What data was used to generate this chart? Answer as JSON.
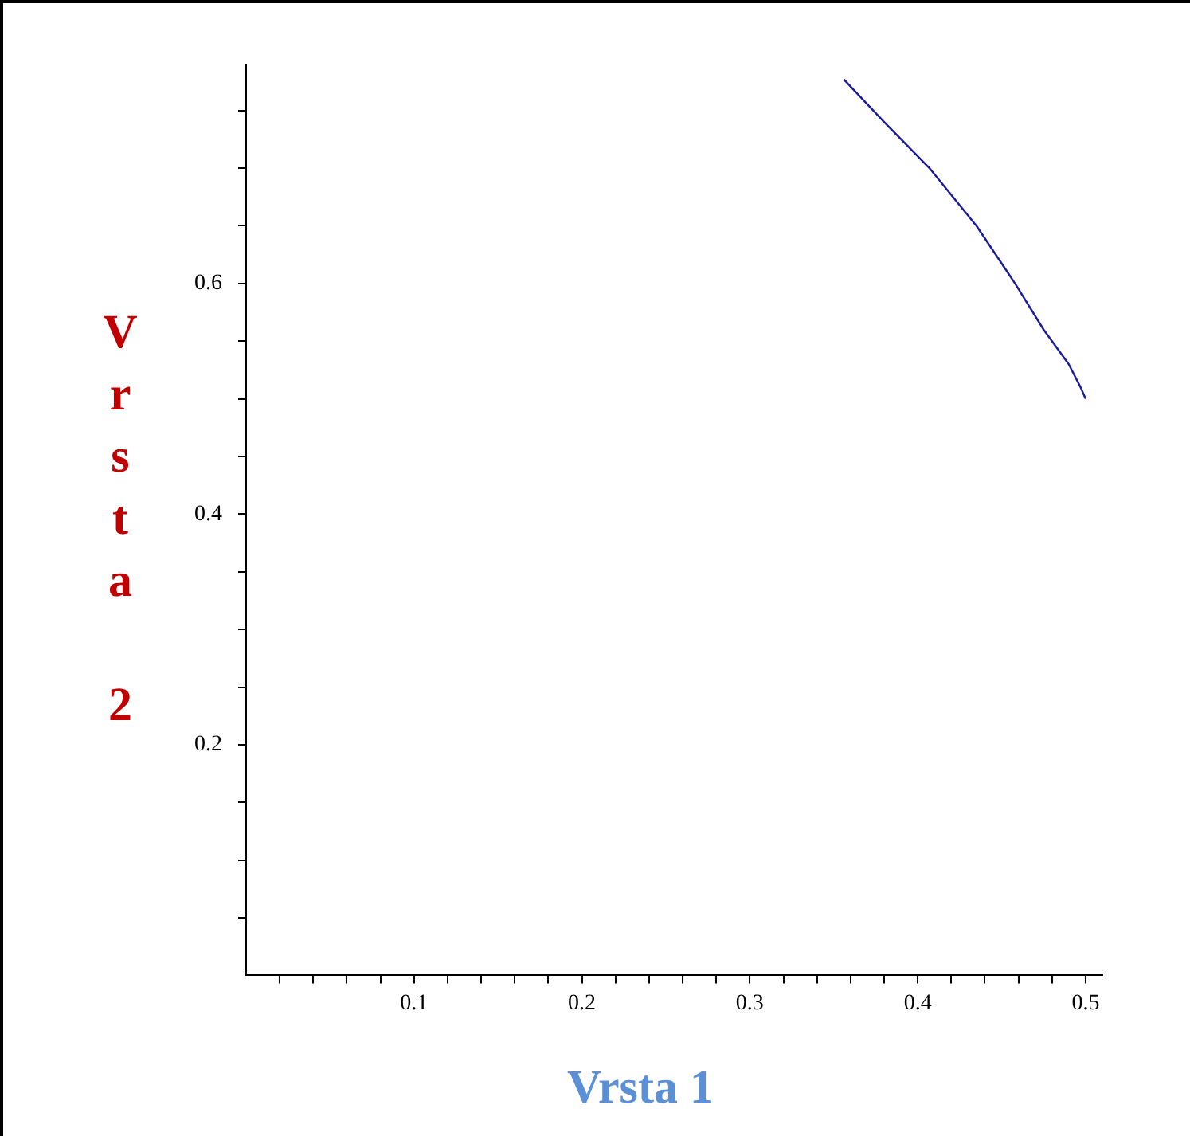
{
  "chart_data": {
    "type": "line",
    "xlabel": "Vrsta 1",
    "ylabel": "Vrsta 2",
    "series": [
      {
        "color": "#1a1a9c",
        "x": [
          0.356,
          0.38,
          0.407,
          0.435,
          0.458,
          0.475,
          0.49,
          0.497,
          0.5
        ],
        "values": [
          0.777,
          0.74,
          0.7,
          0.65,
          0.6,
          0.56,
          0.53,
          0.51,
          0.5
        ]
      }
    ],
    "xlim": [
      0,
      0.51
    ],
    "ylim": [
      0,
      0.79
    ],
    "xticks": [
      {
        "value": 0.02,
        "label": null
      },
      {
        "value": 0.04,
        "label": null
      },
      {
        "value": 0.06,
        "label": null
      },
      {
        "value": 0.08,
        "label": null
      },
      0.1,
      {
        "value": 0.12,
        "label": null
      },
      {
        "value": 0.14,
        "label": null
      },
      {
        "value": 0.16,
        "label": null
      },
      {
        "value": 0.18,
        "label": null
      },
      0.2,
      {
        "value": 0.22,
        "label": null
      },
      {
        "value": 0.24,
        "label": null
      },
      {
        "value": 0.26,
        "label": null
      },
      {
        "value": 0.28,
        "label": null
      },
      0.3,
      {
        "value": 0.32,
        "label": null
      },
      {
        "value": 0.34,
        "label": null
      },
      {
        "value": 0.36,
        "label": null
      },
      {
        "value": 0.38,
        "label": null
      },
      0.4,
      {
        "value": 0.42,
        "label": null
      },
      {
        "value": 0.44,
        "label": null
      },
      {
        "value": 0.46,
        "label": null
      },
      {
        "value": 0.48,
        "label": null
      },
      0.5
    ],
    "yticks": [
      {
        "value": 0.05,
        "label": null
      },
      {
        "value": 0.1,
        "label": null
      },
      {
        "value": 0.15,
        "label": null
      },
      0.2,
      {
        "value": 0.25,
        "label": null
      },
      {
        "value": 0.3,
        "label": null
      },
      {
        "value": 0.35,
        "label": null
      },
      0.4,
      {
        "value": 0.45,
        "label": null
      },
      {
        "value": 0.5,
        "label": null
      },
      {
        "value": 0.55,
        "label": null
      },
      0.6,
      {
        "value": 0.65,
        "label": null
      },
      {
        "value": 0.7,
        "label": null
      },
      {
        "value": 0.75,
        "label": null
      }
    ],
    "grid": false,
    "legend": false,
    "marker": "none",
    "line_style": "solid"
  }
}
